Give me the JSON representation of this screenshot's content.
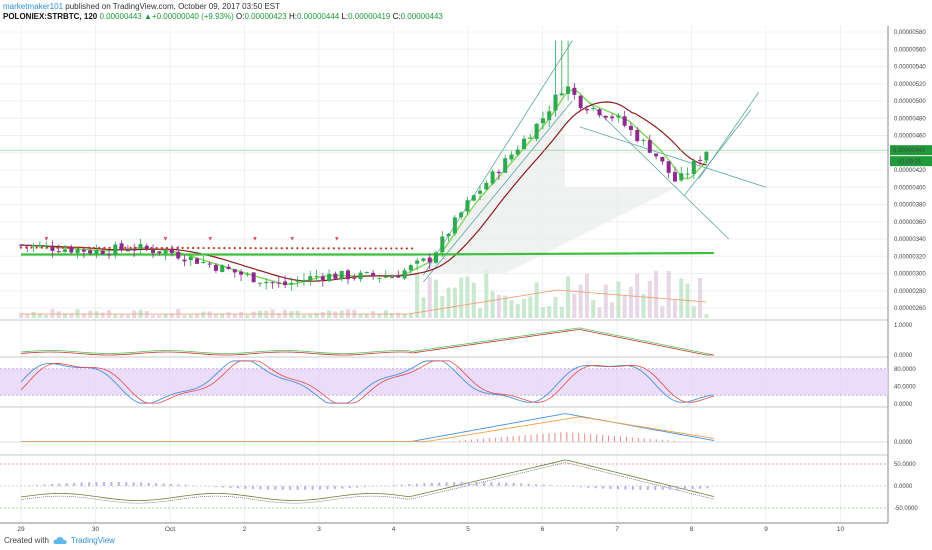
{
  "header": {
    "author": "marketmaker101",
    "published_text": "published on TradingView.com, October 09, 2017 03:50 EST",
    "symbol": "POLONIEX:STRBTC, 120",
    "last": "0.00000443",
    "change_arrow": "▲",
    "change": "+0.00000040 (+9.93%)",
    "o_label": "O:",
    "o_value": "0.00000423",
    "h_label": "H:",
    "h_value": "0.00000444",
    "l_label": "L:",
    "l_value": "0.00000419",
    "c_label": "C:",
    "c_value": "0.00000443"
  },
  "footer": {
    "created_with": "Created with",
    "brand": "TradingView",
    "logo_icon": "tradingview-cloud-icon"
  },
  "colors": {
    "up": "#2fa84f",
    "down": "#8e2a8e",
    "ema_fast": "#7ed957",
    "ema_slow": "#8b1d1d",
    "sma_long": "#3dc03d",
    "stoch_band": "#e6d3f7",
    "macd_blue": "#4a90e2",
    "macd_orange": "#f5a04a",
    "price_tag": "#1f9b3b"
  },
  "chart_data": {
    "type": "candlestick",
    "symbol": "POLONIEX:STRBTC",
    "interval": "120",
    "x_tick_labels": [
      "29",
      "30",
      "Oct",
      "2",
      "3",
      "4",
      "5",
      "6",
      "7",
      "8",
      "9",
      "10"
    ],
    "price_axis": {
      "ylim": [
        2.5e-06,
        5.8e-06
      ],
      "tick_labels": [
        "0.00000580",
        "0.00000560",
        "0.00000540",
        "0.00000520",
        "0.00000500",
        "0.00000480",
        "0.00000460",
        "0.00000440",
        "0.00000420",
        "0.00000400",
        "0.00000380",
        "0.00000360",
        "0.00000340",
        "0.00000320",
        "0.00000300",
        "0.00000280",
        "0.00000260"
      ],
      "last_price_label": "0.00000443",
      "countdown_label": "01:09:31",
      "last_price": 4.43e-06
    },
    "price_series_approx": {
      "x": [
        0,
        1,
        1.5,
        2,
        3,
        3.5,
        4,
        4.5,
        5,
        5.5,
        6,
        6.5,
        7,
        7.3,
        7.5,
        8,
        8.5,
        8.8,
        9,
        9.2
      ],
      "close": [
        3.33e-06,
        3.26e-06,
        3.3e-06,
        3.25e-06,
        2.98e-06,
        2.86e-06,
        2.98e-06,
        2.97e-06,
        2.97e-06,
        3.18e-06,
        3.82e-06,
        4.3e-06,
        4.8e-06,
        5.2e-06,
        4.98e-06,
        4.8e-06,
        4.4e-06,
        4.05e-06,
        4.23e-06,
        4.43e-06
      ]
    },
    "indicators": [
      {
        "panel": "oscillator-1",
        "tick_labels": [
          "1.0000",
          "0.0000"
        ]
      },
      {
        "panel": "stochastic-rsi",
        "tick_labels": [
          "80.0000",
          "40.0000",
          "0.0000"
        ],
        "bands": [
          80,
          20
        ]
      },
      {
        "panel": "macd",
        "tick_labels": [
          "0.0000"
        ]
      },
      {
        "panel": "momentum",
        "tick_labels": [
          "50.0000",
          "0.0000",
          "-50.0000"
        ]
      }
    ]
  }
}
